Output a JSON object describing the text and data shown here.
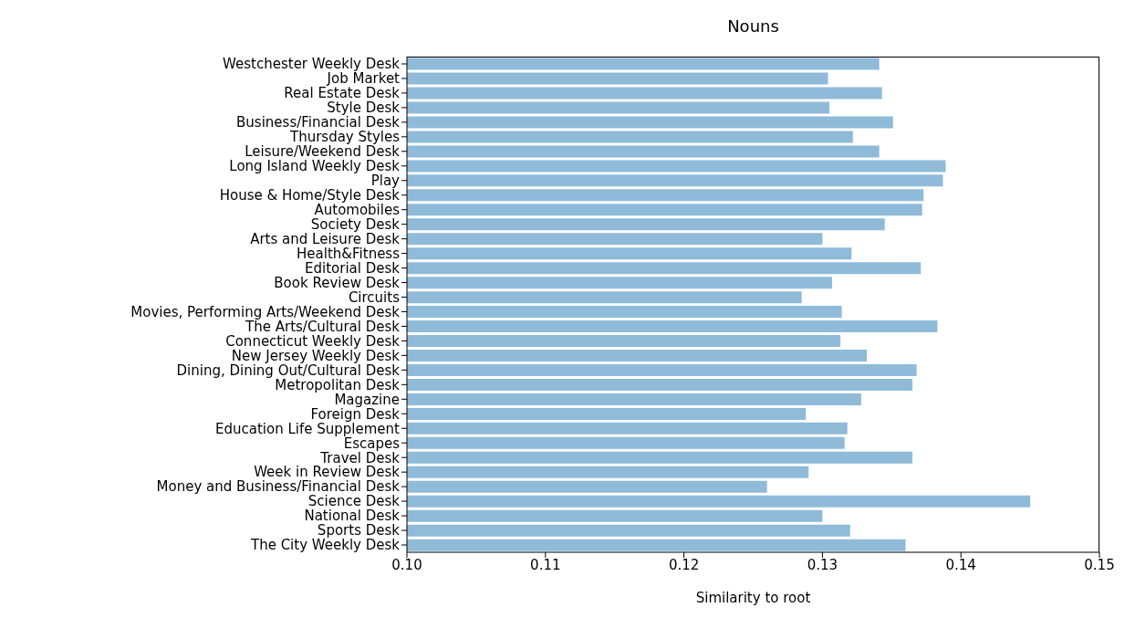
{
  "chart_data": {
    "type": "bar",
    "orientation": "horizontal",
    "title": "Nouns",
    "xlabel": "Similarity to root",
    "categories": [
      "Westchester Weekly Desk",
      "Job Market",
      "Real Estate Desk",
      "Style Desk",
      "Business/Financial Desk",
      "Thursday Styles",
      "Leisure/Weekend Desk",
      "Long Island Weekly Desk",
      "Play",
      "House & Home/Style Desk",
      "Automobiles",
      "Society Desk",
      "Arts and Leisure Desk",
      "Health&Fitness",
      "Editorial Desk",
      "Book Review Desk",
      "Circuits",
      "Movies, Performing Arts/Weekend Desk",
      "The Arts/Cultural Desk",
      "Connecticut Weekly Desk",
      "New Jersey Weekly Desk",
      "Dining, Dining Out/Cultural Desk",
      "Metropolitan Desk",
      "Magazine",
      "Foreign Desk",
      "Education Life Supplement",
      "Escapes",
      "Travel Desk",
      "Week in Review Desk",
      "Money and Business/Financial Desk",
      "Science Desk",
      "National Desk",
      "Sports Desk",
      "The City Weekly Desk"
    ],
    "values": [
      0.1341,
      0.1304,
      0.1343,
      0.1305,
      0.1351,
      0.1322,
      0.1341,
      0.1389,
      0.1387,
      0.1373,
      0.1372,
      0.1345,
      0.13,
      0.1321,
      0.1371,
      0.1307,
      0.1285,
      0.1314,
      0.1383,
      0.1313,
      0.1332,
      0.1368,
      0.1365,
      0.1328,
      0.1288,
      0.1318,
      0.1316,
      0.1365,
      0.129,
      0.126,
      0.145,
      0.13,
      0.132,
      0.136
    ],
    "color": "#8fbbd9",
    "xlim": [
      0.1,
      0.15
    ],
    "xticks": [
      {
        "value": 0.1,
        "label": "0.10"
      },
      {
        "value": 0.11,
        "label": "0.11"
      },
      {
        "value": 0.12,
        "label": "0.12"
      },
      {
        "value": 0.13,
        "label": "0.13"
      },
      {
        "value": 0.14,
        "label": "0.14"
      },
      {
        "value": 0.15,
        "label": "0.15"
      }
    ]
  }
}
